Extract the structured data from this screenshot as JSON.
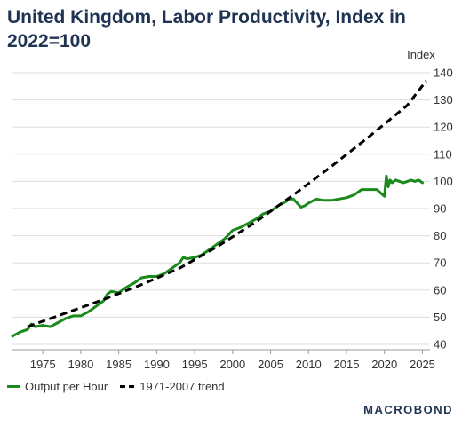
{
  "header": {
    "title": "United Kingdom, Labor Productivity, Index in 2022=100"
  },
  "brand": {
    "text": "MACROBOND"
  },
  "legend": {
    "items": [
      "Output per Hour",
      "1971-2007 trend"
    ]
  },
  "colors": {
    "series": "#1a8a1a",
    "trend": "#000000",
    "title": "#1f3352",
    "grid": "#dddddd"
  },
  "chart_data": {
    "type": "line",
    "title": "United Kingdom, Labor Productivity, Index in 2022=100",
    "ylabel": "Index",
    "xlim": [
      1971,
      2026
    ],
    "ylim": [
      40,
      140
    ],
    "x_ticks": [
      1975,
      1980,
      1985,
      1990,
      1995,
      2000,
      2005,
      2010,
      2015,
      2020,
      2025
    ],
    "y_ticks": [
      40,
      50,
      60,
      70,
      80,
      90,
      100,
      110,
      120,
      130,
      140
    ],
    "grid": true,
    "legend_position": "bottom-left",
    "series": [
      {
        "name": "Output per Hour",
        "style": "solid",
        "x": [
          1971,
          1972,
          1973,
          1973.5,
          1974,
          1975,
          1976,
          1977,
          1978,
          1979,
          1980,
          1981,
          1982,
          1983,
          1983.5,
          1984,
          1985,
          1986,
          1987,
          1988,
          1989,
          1990,
          1991,
          1992,
          1993,
          1993.5,
          1994,
          1995,
          1996,
          1997,
          1998,
          1999,
          2000,
          2001,
          2002,
          2003,
          2004,
          2005,
          2006,
          2007,
          2007.5,
          2008,
          2009,
          2009.5,
          2010,
          2011,
          2012,
          2013,
          2014,
          2015,
          2016,
          2017,
          2018,
          2019,
          2020,
          2020.25,
          2020.5,
          2020.75,
          2021,
          2021.5,
          2022,
          2022.5,
          2023,
          2023.5,
          2024,
          2024.5,
          2025
        ],
        "y": [
          43,
          44.5,
          45.5,
          47.5,
          46.5,
          47,
          46.5,
          48,
          49.5,
          50.5,
          50.5,
          52,
          54,
          56,
          58.5,
          59.5,
          59,
          61,
          62.5,
          64.5,
          65,
          65,
          66,
          68,
          70,
          72,
          71.5,
          72,
          73,
          75,
          77,
          79,
          82,
          83,
          84.5,
          86,
          88,
          89,
          91,
          92.5,
          93.5,
          93.5,
          90.5,
          91,
          92,
          93.5,
          93,
          93,
          93.5,
          94,
          95,
          97,
          97,
          97,
          94.5,
          102,
          98,
          100.5,
          99.5,
          100.5,
          100,
          99.5,
          100,
          100.5,
          100,
          100.5,
          99.5
        ]
      },
      {
        "name": "1971-2007 trend",
        "style": "dashed",
        "x": [
          1973,
          1978,
          1983,
          1988,
          1993,
          1998,
          2003,
          2008,
          2013,
          2018,
          2023,
          2025.5
        ],
        "y": [
          46.5,
          51.5,
          56.5,
          62,
          68,
          76,
          85,
          95,
          105.5,
          116.5,
          128,
          137
        ]
      }
    ]
  }
}
